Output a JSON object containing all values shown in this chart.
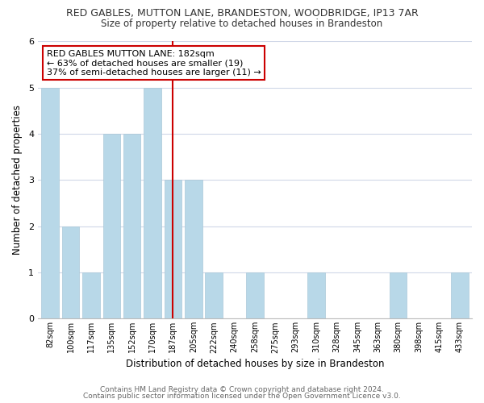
{
  "title": "RED GABLES, MUTTON LANE, BRANDESTON, WOODBRIDGE, IP13 7AR",
  "subtitle": "Size of property relative to detached houses in Brandeston",
  "xlabel": "Distribution of detached houses by size in Brandeston",
  "ylabel": "Number of detached properties",
  "bar_labels": [
    "82sqm",
    "100sqm",
    "117sqm",
    "135sqm",
    "152sqm",
    "170sqm",
    "187sqm",
    "205sqm",
    "222sqm",
    "240sqm",
    "258sqm",
    "275sqm",
    "293sqm",
    "310sqm",
    "328sqm",
    "345sqm",
    "363sqm",
    "380sqm",
    "398sqm",
    "415sqm",
    "433sqm"
  ],
  "bar_values": [
    5,
    2,
    1,
    4,
    4,
    5,
    3,
    3,
    1,
    0,
    1,
    0,
    0,
    1,
    0,
    0,
    0,
    1,
    0,
    0,
    1
  ],
  "bar_color": "#b8d8e8",
  "vline_x_index": 6,
  "vline_color": "#cc0000",
  "annotation_title": "RED GABLES MUTTON LANE: 182sqm",
  "annotation_line1": "← 63% of detached houses are smaller (19)",
  "annotation_line2": "37% of semi-detached houses are larger (11) →",
  "annotation_box_color": "#ffffff",
  "annotation_box_edge": "#cc0000",
  "ylim": [
    0,
    6
  ],
  "yticks": [
    0,
    1,
    2,
    3,
    4,
    5,
    6
  ],
  "footer1": "Contains HM Land Registry data © Crown copyright and database right 2024.",
  "footer2": "Contains public sector information licensed under the Open Government Licence v3.0.",
  "bg_color": "#ffffff",
  "grid_color": "#d0d8e8"
}
